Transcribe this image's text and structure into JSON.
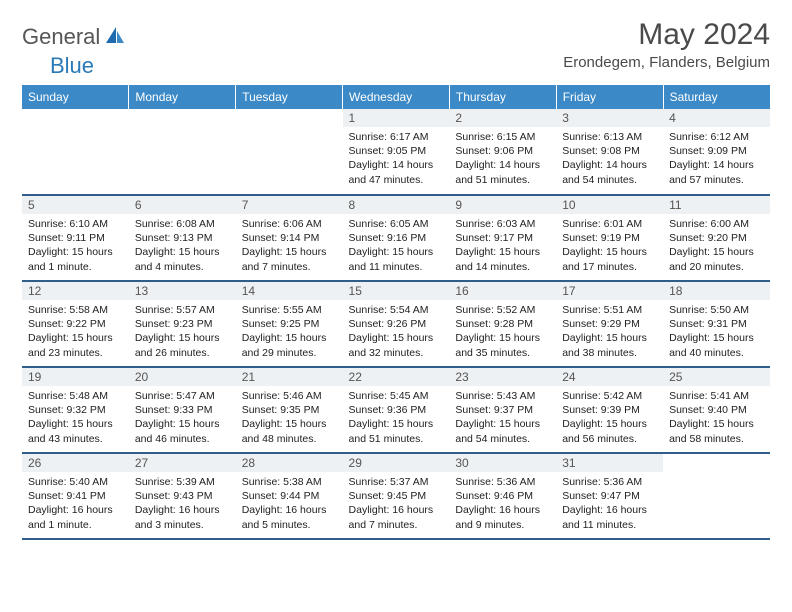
{
  "brand": {
    "general": "General",
    "blue": "Blue"
  },
  "title": "May 2024",
  "location": "Erondegem, Flanders, Belgium",
  "colors": {
    "header_bg": "#3b89c7",
    "header_text": "#ffffff",
    "daynum_bg": "#eef1f3",
    "row_border": "#2f5e8a",
    "title_color": "#4a4a4a",
    "logo_gray": "#565656",
    "logo_blue": "#2a7ab8"
  },
  "weekdays": [
    "Sunday",
    "Monday",
    "Tuesday",
    "Wednesday",
    "Thursday",
    "Friday",
    "Saturday"
  ],
  "weeks": [
    [
      {
        "n": "",
        "sunrise": "",
        "sunset": "",
        "daylight": ""
      },
      {
        "n": "",
        "sunrise": "",
        "sunset": "",
        "daylight": ""
      },
      {
        "n": "",
        "sunrise": "",
        "sunset": "",
        "daylight": ""
      },
      {
        "n": "1",
        "sunrise": "6:17 AM",
        "sunset": "9:05 PM",
        "daylight": "14 hours and 47 minutes."
      },
      {
        "n": "2",
        "sunrise": "6:15 AM",
        "sunset": "9:06 PM",
        "daylight": "14 hours and 51 minutes."
      },
      {
        "n": "3",
        "sunrise": "6:13 AM",
        "sunset": "9:08 PM",
        "daylight": "14 hours and 54 minutes."
      },
      {
        "n": "4",
        "sunrise": "6:12 AM",
        "sunset": "9:09 PM",
        "daylight": "14 hours and 57 minutes."
      }
    ],
    [
      {
        "n": "5",
        "sunrise": "6:10 AM",
        "sunset": "9:11 PM",
        "daylight": "15 hours and 1 minute."
      },
      {
        "n": "6",
        "sunrise": "6:08 AM",
        "sunset": "9:13 PM",
        "daylight": "15 hours and 4 minutes."
      },
      {
        "n": "7",
        "sunrise": "6:06 AM",
        "sunset": "9:14 PM",
        "daylight": "15 hours and 7 minutes."
      },
      {
        "n": "8",
        "sunrise": "6:05 AM",
        "sunset": "9:16 PM",
        "daylight": "15 hours and 11 minutes."
      },
      {
        "n": "9",
        "sunrise": "6:03 AM",
        "sunset": "9:17 PM",
        "daylight": "15 hours and 14 minutes."
      },
      {
        "n": "10",
        "sunrise": "6:01 AM",
        "sunset": "9:19 PM",
        "daylight": "15 hours and 17 minutes."
      },
      {
        "n": "11",
        "sunrise": "6:00 AM",
        "sunset": "9:20 PM",
        "daylight": "15 hours and 20 minutes."
      }
    ],
    [
      {
        "n": "12",
        "sunrise": "5:58 AM",
        "sunset": "9:22 PM",
        "daylight": "15 hours and 23 minutes."
      },
      {
        "n": "13",
        "sunrise": "5:57 AM",
        "sunset": "9:23 PM",
        "daylight": "15 hours and 26 minutes."
      },
      {
        "n": "14",
        "sunrise": "5:55 AM",
        "sunset": "9:25 PM",
        "daylight": "15 hours and 29 minutes."
      },
      {
        "n": "15",
        "sunrise": "5:54 AM",
        "sunset": "9:26 PM",
        "daylight": "15 hours and 32 minutes."
      },
      {
        "n": "16",
        "sunrise": "5:52 AM",
        "sunset": "9:28 PM",
        "daylight": "15 hours and 35 minutes."
      },
      {
        "n": "17",
        "sunrise": "5:51 AM",
        "sunset": "9:29 PM",
        "daylight": "15 hours and 38 minutes."
      },
      {
        "n": "18",
        "sunrise": "5:50 AM",
        "sunset": "9:31 PM",
        "daylight": "15 hours and 40 minutes."
      }
    ],
    [
      {
        "n": "19",
        "sunrise": "5:48 AM",
        "sunset": "9:32 PM",
        "daylight": "15 hours and 43 minutes."
      },
      {
        "n": "20",
        "sunrise": "5:47 AM",
        "sunset": "9:33 PM",
        "daylight": "15 hours and 46 minutes."
      },
      {
        "n": "21",
        "sunrise": "5:46 AM",
        "sunset": "9:35 PM",
        "daylight": "15 hours and 48 minutes."
      },
      {
        "n": "22",
        "sunrise": "5:45 AM",
        "sunset": "9:36 PM",
        "daylight": "15 hours and 51 minutes."
      },
      {
        "n": "23",
        "sunrise": "5:43 AM",
        "sunset": "9:37 PM",
        "daylight": "15 hours and 54 minutes."
      },
      {
        "n": "24",
        "sunrise": "5:42 AM",
        "sunset": "9:39 PM",
        "daylight": "15 hours and 56 minutes."
      },
      {
        "n": "25",
        "sunrise": "5:41 AM",
        "sunset": "9:40 PM",
        "daylight": "15 hours and 58 minutes."
      }
    ],
    [
      {
        "n": "26",
        "sunrise": "5:40 AM",
        "sunset": "9:41 PM",
        "daylight": "16 hours and 1 minute."
      },
      {
        "n": "27",
        "sunrise": "5:39 AM",
        "sunset": "9:43 PM",
        "daylight": "16 hours and 3 minutes."
      },
      {
        "n": "28",
        "sunrise": "5:38 AM",
        "sunset": "9:44 PM",
        "daylight": "16 hours and 5 minutes."
      },
      {
        "n": "29",
        "sunrise": "5:37 AM",
        "sunset": "9:45 PM",
        "daylight": "16 hours and 7 minutes."
      },
      {
        "n": "30",
        "sunrise": "5:36 AM",
        "sunset": "9:46 PM",
        "daylight": "16 hours and 9 minutes."
      },
      {
        "n": "31",
        "sunrise": "5:36 AM",
        "sunset": "9:47 PM",
        "daylight": "16 hours and 11 minutes."
      },
      {
        "n": "",
        "sunrise": "",
        "sunset": "",
        "daylight": ""
      }
    ]
  ]
}
